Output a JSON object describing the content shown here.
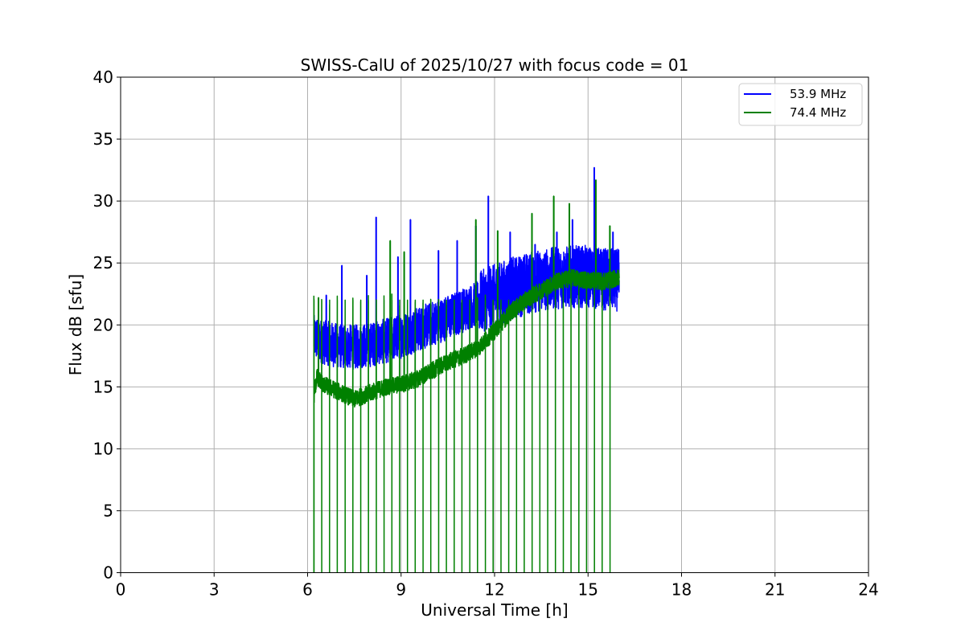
{
  "chart_data": {
    "type": "line",
    "title": "SWISS-CalU of 2025/10/27 with focus code = 01",
    "xlabel": "Universal Time [h]",
    "ylabel": "Flux dB [sfu]",
    "xlim": [
      0,
      24
    ],
    "ylim": [
      0,
      40
    ],
    "xticks": [
      0,
      3,
      6,
      9,
      12,
      15,
      18,
      21,
      24
    ],
    "yticks": [
      0,
      5,
      10,
      15,
      20,
      25,
      30,
      35,
      40
    ],
    "grid": true,
    "legend_position": "top-right",
    "data_start_hour": 6.2,
    "data_end_hour": 16.0,
    "calibration_period_hours": 0.25,
    "series": [
      {
        "name": "53.9 MHz",
        "color": "#0000ff",
        "trend": {
          "x": [
            6.2,
            6.5,
            7.0,
            7.5,
            8.0,
            8.5,
            9.0,
            9.5,
            10.0,
            10.5,
            11.0,
            11.5,
            12.0,
            12.5,
            13.0,
            13.5,
            14.0,
            14.5,
            15.0,
            15.5,
            16.0
          ],
          "y": [
            19.0,
            18.6,
            18.3,
            18.2,
            18.4,
            18.7,
            19.1,
            19.6,
            20.1,
            20.6,
            21.2,
            21.8,
            22.4,
            22.9,
            23.3,
            23.6,
            23.8,
            23.9,
            23.9,
            23.7,
            23.6
          ]
        },
        "noise_amplitude": 1.8,
        "spikes": [
          {
            "x": 6.6,
            "y": 22.4
          },
          {
            "x": 7.1,
            "y": 24.8
          },
          {
            "x": 7.9,
            "y": 24.0
          },
          {
            "x": 8.2,
            "y": 28.7
          },
          {
            "x": 8.9,
            "y": 25.5
          },
          {
            "x": 9.3,
            "y": 28.5
          },
          {
            "x": 10.2,
            "y": 26.0
          },
          {
            "x": 10.8,
            "y": 26.8
          },
          {
            "x": 11.4,
            "y": 28.0
          },
          {
            "x": 11.8,
            "y": 30.4
          },
          {
            "x": 12.5,
            "y": 27.5
          },
          {
            "x": 13.3,
            "y": 26.5
          },
          {
            "x": 14.0,
            "y": 27.5
          },
          {
            "x": 14.5,
            "y": 28.5
          },
          {
            "x": 15.2,
            "y": 32.7
          },
          {
            "x": 15.8,
            "y": 27.5
          }
        ]
      },
      {
        "name": "74.4 MHz",
        "color": "#008000",
        "trend": {
          "x": [
            6.2,
            6.3,
            6.5,
            7.0,
            7.5,
            8.0,
            8.5,
            9.0,
            9.5,
            10.0,
            10.5,
            11.0,
            11.5,
            12.0,
            12.5,
            13.0,
            13.5,
            14.0,
            14.5,
            15.0,
            15.5,
            16.0
          ],
          "y": [
            14.2,
            15.8,
            15.2,
            14.6,
            14.0,
            14.5,
            15.0,
            15.2,
            15.6,
            16.3,
            17.0,
            17.5,
            18.2,
            19.5,
            21.0,
            22.0,
            22.8,
            23.5,
            23.8,
            23.6,
            23.5,
            23.8
          ]
        },
        "noise_amplitude": 0.7,
        "calibration_peak": 22.0,
        "calibration_floor": 0.0,
        "spikes": [
          {
            "x": 6.35,
            "y": 22.2
          },
          {
            "x": 8.65,
            "y": 26.8
          },
          {
            "x": 9.1,
            "y": 25.9
          },
          {
            "x": 11.4,
            "y": 28.5
          },
          {
            "x": 12.1,
            "y": 27.6
          },
          {
            "x": 13.2,
            "y": 29.0
          },
          {
            "x": 13.9,
            "y": 30.4
          },
          {
            "x": 14.4,
            "y": 29.8
          },
          {
            "x": 15.25,
            "y": 31.7
          },
          {
            "x": 15.7,
            "y": 28.0
          }
        ]
      }
    ]
  }
}
